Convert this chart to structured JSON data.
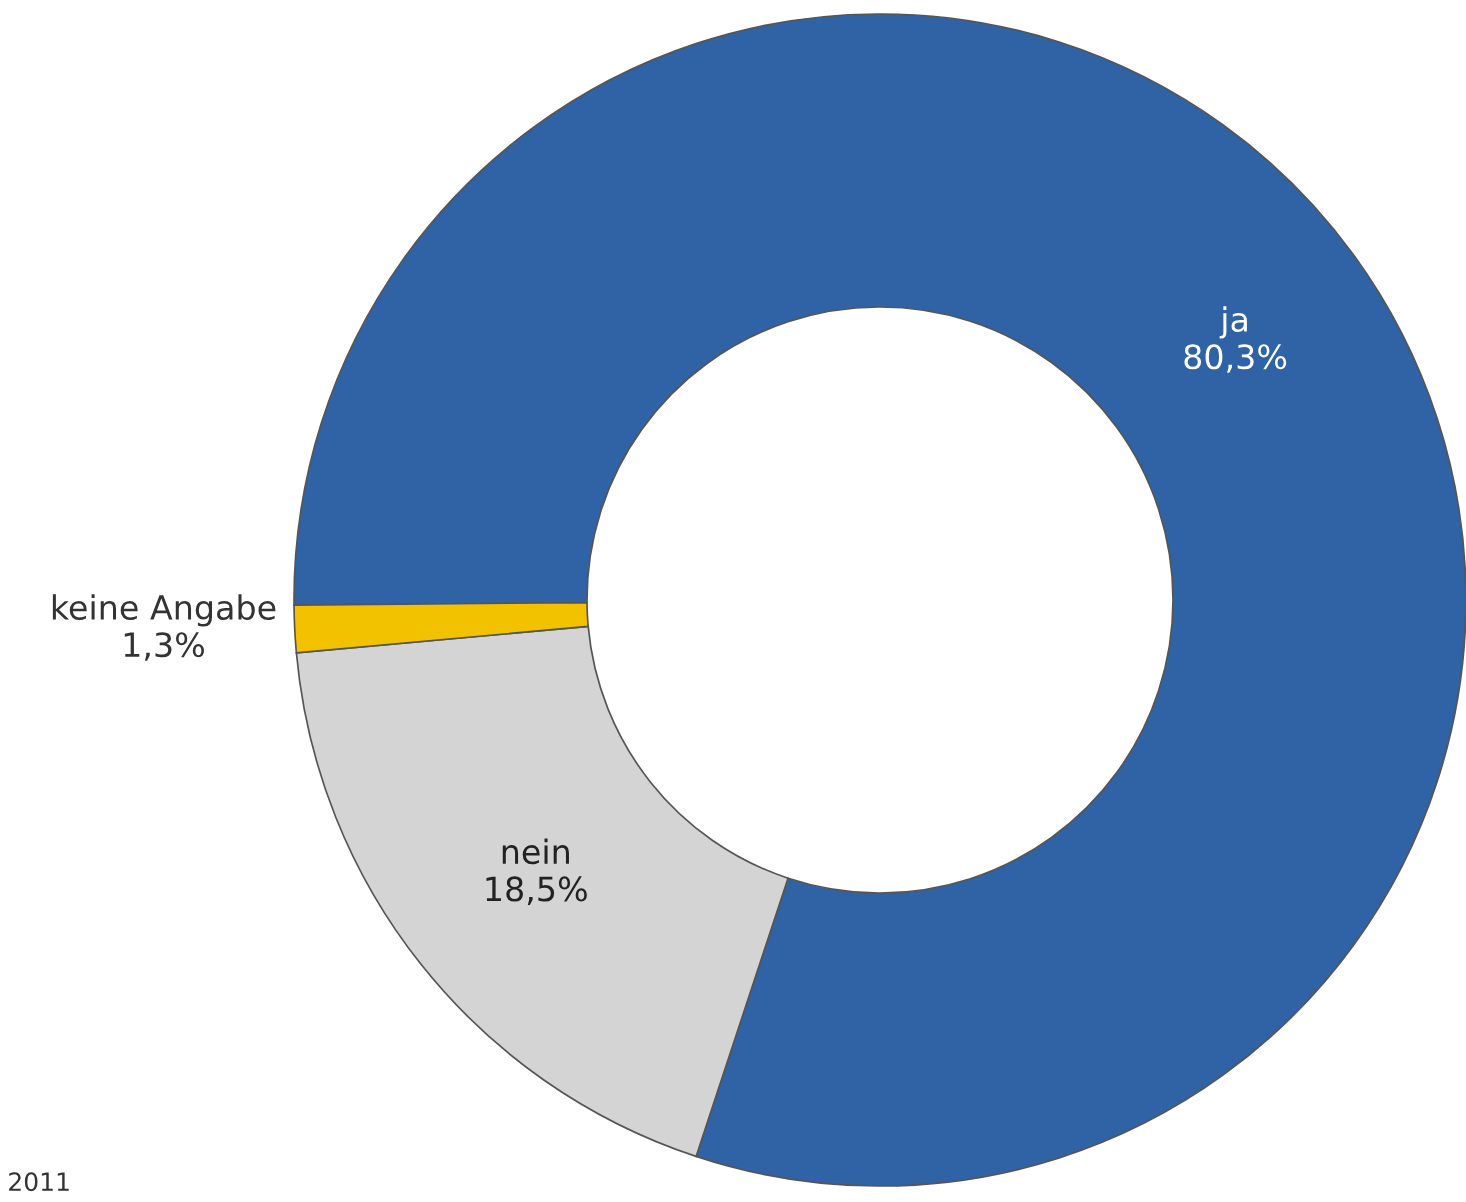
{
  "chart_data": {
    "type": "donut",
    "categories": [
      "ja",
      "nein",
      "keine Angabe"
    ],
    "values": [
      80.3,
      18.5,
      1.3
    ],
    "colors": [
      "#2f63a6",
      "#d4d4d4",
      "#f2c200"
    ],
    "value_labels": [
      "80,3%",
      "18,5%",
      "1,3%"
    ],
    "annotations": [
      "2011"
    ]
  }
}
